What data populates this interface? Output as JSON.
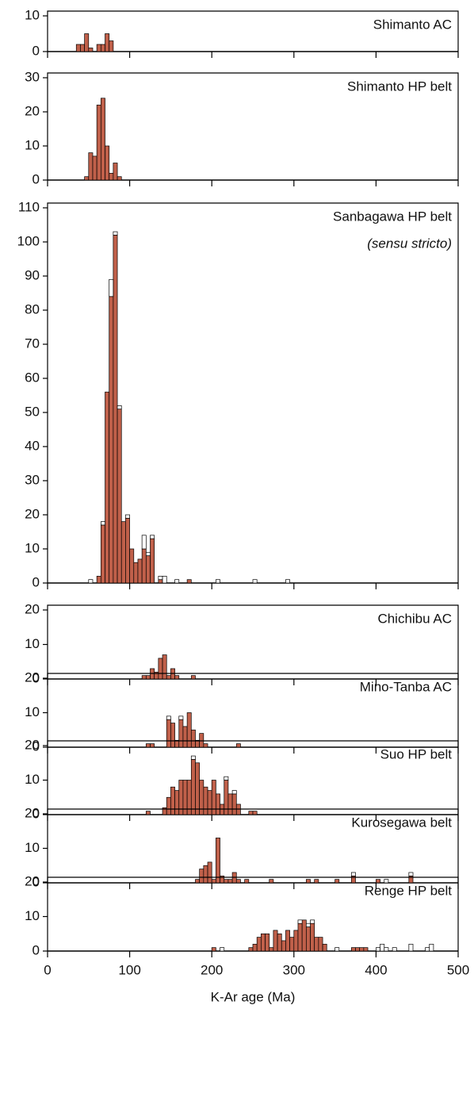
{
  "chart_data": [
    {
      "type": "histogram",
      "title": "Shimanto AC",
      "bins": [
        35,
        40,
        45,
        50,
        55,
        60,
        65,
        70,
        75,
        80
      ],
      "series": [
        {
          "color": "#c0604a",
          "values": [
            2,
            2,
            5,
            1,
            0,
            2,
            2,
            5,
            3
          ]
        },
        {
          "color": "#ffffff",
          "values": [
            0,
            0,
            0,
            0,
            0,
            0,
            0,
            0,
            0
          ]
        }
      ],
      "xlim": [
        0,
        500
      ],
      "xticks": [
        0,
        100,
        200,
        300,
        400,
        500
      ],
      "ylim": [
        0,
        10
      ],
      "yticks": [
        0,
        10
      ]
    },
    {
      "type": "histogram",
      "title": "Shimanto HP belt",
      "bins": [
        45,
        50,
        55,
        60,
        65,
        70,
        75,
        80,
        85,
        90
      ],
      "series": [
        {
          "color": "#c0604a",
          "values": [
            1,
            8,
            7,
            22,
            24,
            10,
            2,
            5,
            1
          ]
        },
        {
          "color": "#ffffff",
          "values": [
            0,
            0,
            0,
            0,
            0,
            0,
            0,
            0,
            0
          ]
        }
      ],
      "xlim": [
        0,
        500
      ],
      "xticks": [
        0,
        100,
        200,
        300,
        400,
        500
      ],
      "ylim": [
        0,
        30
      ],
      "yticks": [
        0,
        10,
        20,
        30
      ]
    },
    {
      "type": "histogram",
      "title": "Sanbagawa HP belt",
      "subtitle": "(sensu stricto)",
      "bins": [
        35,
        40,
        45,
        50,
        55,
        60,
        65,
        70,
        75,
        80,
        85,
        90,
        95,
        100,
        105,
        110,
        115,
        120,
        125,
        130,
        135,
        140,
        145,
        150,
        155,
        160,
        165,
        170,
        175,
        180,
        185,
        190,
        195,
        200,
        205,
        210,
        215,
        220,
        225,
        230,
        235,
        240,
        245,
        250,
        255,
        260,
        265,
        270,
        275,
        280,
        285,
        290,
        295
      ],
      "series": [
        {
          "color": "#c0604a",
          "values": [
            0,
            0,
            0,
            0,
            0,
            2,
            17,
            56,
            84,
            102,
            51,
            18,
            19,
            10,
            6,
            7,
            10,
            8,
            13,
            0,
            1,
            0,
            0,
            0,
            0,
            0,
            0,
            1,
            0,
            0,
            0,
            0,
            0,
            0,
            0,
            0,
            0,
            0,
            0,
            0,
            0,
            0,
            0,
            0,
            0,
            0,
            0,
            0,
            0,
            0,
            0,
            0
          ]
        },
        {
          "color": "#ffffff",
          "values": [
            0,
            0,
            0,
            1,
            0,
            0,
            1,
            0,
            5,
            1,
            1,
            0,
            1,
            0,
            0,
            0,
            4,
            1,
            1,
            0,
            1,
            2,
            0,
            0,
            1,
            0,
            0,
            0,
            0,
            0,
            0,
            0,
            0,
            0,
            1,
            0,
            0,
            0,
            0,
            0,
            0,
            0,
            0,
            1,
            0,
            0,
            0,
            0,
            0,
            0,
            0,
            1
          ]
        }
      ],
      "xlim": [
        0,
        500
      ],
      "xticks": [
        0,
        100,
        200,
        300,
        400,
        500
      ],
      "ylim": [
        0,
        110
      ],
      "yticks": [
        0,
        10,
        20,
        30,
        40,
        50,
        60,
        70,
        80,
        90,
        100,
        110
      ]
    },
    {
      "type": "histogram",
      "title": "Chichibu AC",
      "bins": [
        115,
        120,
        125,
        130,
        135,
        140,
        145,
        150,
        155,
        160,
        165,
        170,
        175,
        180
      ],
      "series": [
        {
          "color": "#c0604a",
          "values": [
            1,
            1,
            3,
            2,
            6,
            7,
            1,
            3,
            1,
            0,
            0,
            0,
            1
          ]
        },
        {
          "color": "#ffffff",
          "values": [
            0,
            0,
            0,
            0,
            0,
            0,
            0,
            0,
            0,
            0,
            0,
            0,
            0
          ]
        }
      ],
      "xlim": [
        0,
        500
      ],
      "xticks": [
        0,
        100,
        200,
        300,
        400,
        500
      ],
      "ylim": [
        0,
        20
      ],
      "yticks": [
        0,
        10,
        20
      ]
    },
    {
      "type": "histogram",
      "title": "Mino-Tanba AC",
      "bins": [
        120,
        125,
        130,
        135,
        140,
        145,
        150,
        155,
        160,
        165,
        170,
        175,
        180,
        185,
        190,
        195,
        200,
        205,
        210,
        215,
        220,
        225,
        230,
        235
      ],
      "series": [
        {
          "color": "#c0604a",
          "values": [
            1,
            1,
            0,
            0,
            0,
            8,
            7,
            2,
            8,
            6,
            10,
            5,
            2,
            4,
            1,
            0,
            0,
            0,
            0,
            0,
            0,
            0,
            1
          ]
        },
        {
          "color": "#ffffff",
          "values": [
            0,
            0,
            0,
            0,
            0,
            1,
            0,
            0,
            1,
            0,
            0,
            0,
            0,
            0,
            0,
            0,
            0,
            0,
            0,
            0,
            0,
            0,
            0
          ]
        }
      ],
      "xlim": [
        0,
        500
      ],
      "xticks": [
        0,
        100,
        200,
        300,
        400,
        500
      ],
      "ylim": [
        0,
        20
      ],
      "yticks": [
        0,
        10,
        20
      ]
    },
    {
      "type": "histogram",
      "title": "Suo HP belt",
      "bins": [
        120,
        125,
        130,
        135,
        140,
        145,
        150,
        155,
        160,
        165,
        170,
        175,
        180,
        185,
        190,
        195,
        200,
        205,
        210,
        215,
        220,
        225,
        230,
        235,
        240,
        245,
        250,
        255
      ],
      "series": [
        {
          "color": "#c0604a",
          "values": [
            1,
            0,
            0,
            0,
            2,
            5,
            8,
            7,
            10,
            10,
            10,
            16,
            15,
            10,
            8,
            7,
            10,
            6,
            3,
            10,
            6,
            6,
            3,
            0,
            0,
            1,
            1
          ]
        },
        {
          "color": "#ffffff",
          "values": [
            0,
            0,
            0,
            0,
            0,
            0,
            0,
            0,
            0,
            0,
            0,
            1,
            0,
            0,
            0,
            0,
            0,
            0,
            0,
            1,
            0,
            1,
            0,
            0,
            0,
            0,
            0
          ]
        }
      ],
      "xlim": [
        0,
        500
      ],
      "xticks": [
        0,
        100,
        200,
        300,
        400,
        500
      ],
      "ylim": [
        0,
        20
      ],
      "yticks": [
        0,
        10,
        20
      ]
    },
    {
      "type": "histogram",
      "title": "Kurosegawa belt",
      "bins": [
        180,
        185,
        190,
        195,
        200,
        205,
        210,
        215,
        220,
        225,
        230,
        235,
        240,
        245,
        250,
        255,
        260,
        265,
        270,
        275,
        280,
        285,
        290,
        295,
        300,
        305,
        310,
        315,
        320,
        325,
        330,
        335,
        340,
        345,
        350,
        355,
        360,
        365,
        370,
        375,
        380,
        385,
        390,
        395,
        400,
        405,
        410,
        415,
        420,
        425,
        430,
        435,
        440,
        445,
        450
      ],
      "series": [
        {
          "color": "#c0604a",
          "values": [
            1,
            4,
            5,
            6,
            1,
            13,
            2,
            1,
            1,
            3,
            1,
            0,
            1,
            0,
            0,
            0,
            0,
            0,
            1,
            0,
            0,
            0,
            0,
            0,
            0,
            0,
            0,
            1,
            0,
            1,
            0,
            0,
            0,
            0,
            1,
            0,
            0,
            0,
            2,
            0,
            0,
            0,
            0,
            0,
            1,
            0,
            0,
            0,
            0,
            0,
            0,
            0,
            2,
            0
          ]
        },
        {
          "color": "#ffffff",
          "values": [
            0,
            0,
            0,
            0,
            0,
            0,
            0,
            0,
            0,
            0,
            0,
            0,
            0,
            0,
            0,
            0,
            0,
            0,
            0,
            0,
            0,
            0,
            0,
            0,
            0,
            0,
            0,
            0,
            0,
            0,
            0,
            0,
            0,
            0,
            0,
            0,
            0,
            0,
            1,
            0,
            0,
            0,
            0,
            0,
            0,
            0,
            1,
            0,
            0,
            0,
            0,
            0,
            1,
            0
          ]
        }
      ],
      "xlim": [
        0,
        500
      ],
      "xticks": [
        0,
        100,
        200,
        300,
        400,
        500
      ],
      "ylim": [
        0,
        20
      ],
      "yticks": [
        0,
        10,
        20
      ]
    },
    {
      "type": "histogram",
      "title": "Renge HP belt",
      "bins": [
        200,
        205,
        210,
        215,
        220,
        225,
        230,
        235,
        240,
        245,
        250,
        255,
        260,
        265,
        270,
        275,
        280,
        285,
        290,
        295,
        300,
        305,
        310,
        315,
        320,
        325,
        330,
        335,
        340,
        345,
        350,
        355,
        360,
        365,
        370,
        375,
        380,
        385,
        390,
        395,
        400,
        405,
        410,
        415,
        420,
        425,
        430,
        435,
        440,
        445,
        450,
        455,
        460,
        465,
        470
      ],
      "series": [
        {
          "color": "#c0604a",
          "values": [
            1,
            0,
            0,
            0,
            0,
            0,
            0,
            0,
            0,
            1,
            2,
            4,
            5,
            5,
            1,
            6,
            5,
            3,
            6,
            4,
            6,
            8,
            9,
            7,
            8,
            4,
            4,
            2,
            0,
            0,
            0,
            0,
            0,
            0,
            1,
            1,
            1,
            1,
            0,
            0,
            0,
            0,
            0,
            0,
            0,
            0,
            0,
            0,
            0,
            0,
            0,
            0,
            0,
            0
          ]
        },
        {
          "color": "#ffffff",
          "values": [
            0,
            0,
            1,
            0,
            0,
            0,
            0,
            0,
            0,
            0,
            0,
            0,
            0,
            0,
            0,
            0,
            0,
            0,
            0,
            0,
            0,
            1,
            0,
            1,
            1,
            0,
            0,
            0,
            0,
            0,
            1,
            0,
            0,
            0,
            0,
            0,
            0,
            0,
            0,
            0,
            1,
            2,
            1,
            0,
            1,
            0,
            0,
            0,
            2,
            0,
            0,
            0,
            1,
            2
          ]
        }
      ],
      "xlim": [
        0,
        500
      ],
      "xticks": [
        0,
        100,
        200,
        300,
        400,
        500
      ],
      "ylim": [
        0,
        20
      ],
      "yticks": [
        0,
        10,
        20
      ],
      "xlabel": "K-Ar age (Ma)"
    }
  ]
}
